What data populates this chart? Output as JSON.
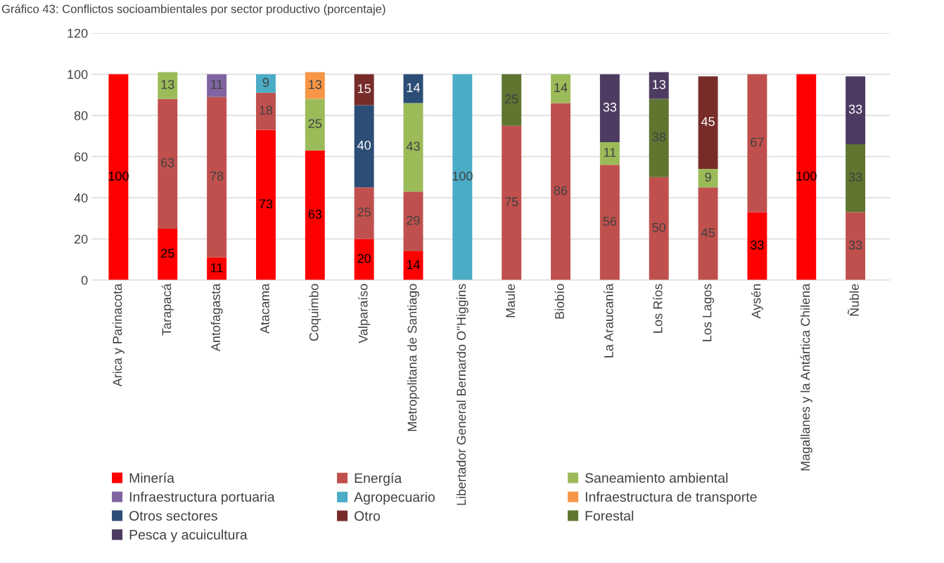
{
  "chart_data": {
    "type": "bar",
    "stacked": true,
    "title": "Gráfico 43: Conflictos socioambientales por sector productivo (porcentaje)",
    "categories": [
      "Arica y Parinacota",
      "Tarapacá",
      "Antofagasta",
      "Atacama",
      "Coquimbo",
      "Valparaíso",
      "Metropolitana de Santiago",
      "Libertador General Bernardo O''Higgins",
      "Maule",
      "Biobío",
      "La Araucanía",
      "Los Ríos",
      "Los Lagos",
      "Aysén",
      "Magallanes y la Antártica Chilena",
      "Ñuble"
    ],
    "series": [
      {
        "name": "Minería",
        "color": "#ff0000",
        "values": [
          100,
          25,
          11,
          73,
          63,
          20,
          14,
          null,
          null,
          null,
          null,
          null,
          null,
          33,
          100,
          null
        ]
      },
      {
        "name": "Energía",
        "color": "#c0504d",
        "values": [
          null,
          63,
          78,
          18,
          null,
          25,
          29,
          null,
          75,
          86,
          56,
          50,
          45,
          67,
          null,
          33
        ]
      },
      {
        "name": "Saneamiento ambiental",
        "color": "#9bbb59",
        "values": [
          null,
          13,
          null,
          null,
          25,
          null,
          43,
          null,
          null,
          14,
          11,
          null,
          9,
          null,
          null,
          null
        ]
      },
      {
        "name": "Infraestructura portuaria",
        "color": "#8064a2",
        "values": [
          null,
          null,
          11,
          null,
          null,
          null,
          null,
          null,
          null,
          null,
          null,
          null,
          null,
          null,
          null,
          null
        ]
      },
      {
        "name": "Agropecuario",
        "color": "#4bacc6",
        "values": [
          null,
          null,
          null,
          9,
          null,
          null,
          null,
          100,
          null,
          null,
          null,
          null,
          null,
          null,
          null,
          null
        ]
      },
      {
        "name": "Infraestructura de transporte",
        "color": "#f79646",
        "values": [
          null,
          null,
          null,
          null,
          13,
          null,
          null,
          null,
          null,
          null,
          null,
          null,
          null,
          null,
          null,
          null
        ]
      },
      {
        "name": "Otros sectores",
        "color": "#2c4d75",
        "values": [
          null,
          null,
          null,
          null,
          null,
          40,
          14,
          null,
          null,
          null,
          null,
          null,
          null,
          null,
          null,
          null
        ]
      },
      {
        "name": "Otro",
        "color": "#772c2a",
        "values": [
          null,
          null,
          null,
          null,
          null,
          15,
          null,
          null,
          null,
          null,
          null,
          null,
          45,
          null,
          null,
          null
        ]
      },
      {
        "name": "Forestal",
        "color": "#5f7530",
        "values": [
          null,
          null,
          null,
          null,
          null,
          null,
          null,
          null,
          25,
          null,
          null,
          38,
          null,
          null,
          null,
          33
        ]
      },
      {
        "name": "Pesca y acuicultura",
        "color": "#4d3b62",
        "values": [
          null,
          null,
          null,
          null,
          null,
          null,
          null,
          null,
          null,
          null,
          33,
          13,
          null,
          null,
          null,
          33
        ]
      }
    ],
    "ylim": [
      0,
      120
    ],
    "yticks": [
      0,
      20,
      40,
      60,
      80,
      100,
      120
    ],
    "grid": "y",
    "legend": "bottom",
    "data_labels": true
  }
}
